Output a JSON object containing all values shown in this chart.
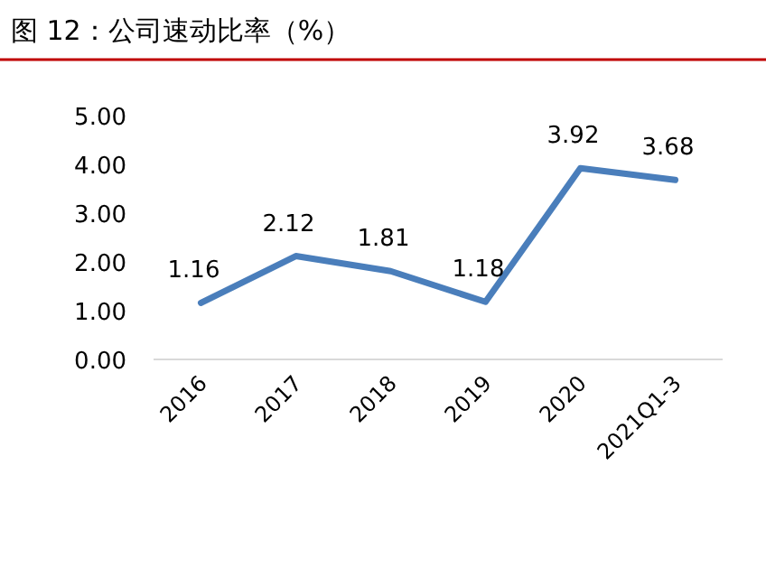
{
  "chart_data": {
    "type": "line",
    "title": "图 12：公司速动比率（%）",
    "categories": [
      "2016",
      "2017",
      "2018",
      "2019",
      "2020",
      "2021Q1-3"
    ],
    "series": [
      {
        "color": "#4a7ebb",
        "values": [
          1.16,
          2.12,
          1.81,
          1.18,
          3.92,
          3.68
        ]
      }
    ],
    "ylim": [
      0,
      5
    ],
    "yticks": [
      {
        "value": 0,
        "label": "0.00"
      },
      {
        "value": 1,
        "label": "1.00"
      },
      {
        "value": 2,
        "label": "2.00"
      },
      {
        "value": 3,
        "label": "3.00"
      },
      {
        "value": 4,
        "label": "4.00"
      },
      {
        "value": 5,
        "label": "5.00"
      }
    ],
    "data_labels": true,
    "grid": false,
    "marker": "none",
    "line_style": "solid"
  }
}
